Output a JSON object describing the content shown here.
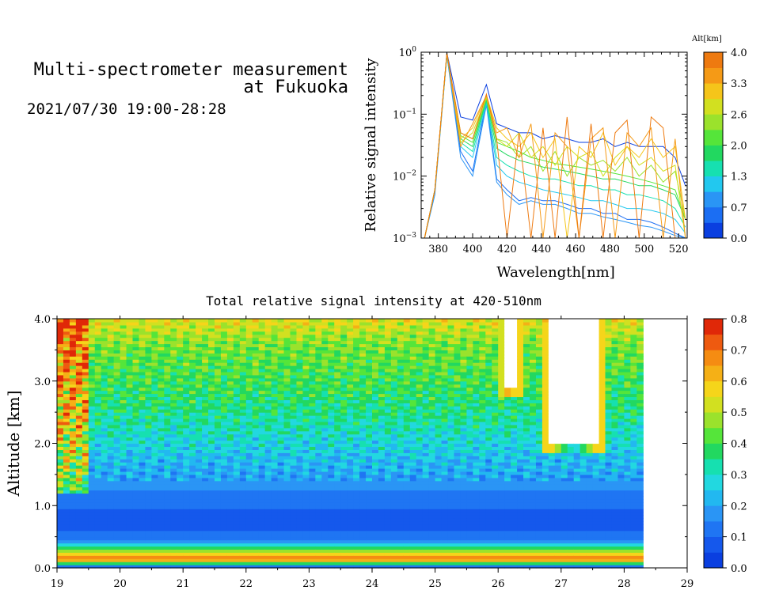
{
  "header": {
    "title_line1": "Multi-spectrometer measurement",
    "title_line2": "at Fukuoka",
    "datetime": "2021/07/30 19:00-28:28"
  },
  "chart_data": [
    {
      "type": "line",
      "xlabel": "Wavelength[nm]",
      "ylabel": "Relative signal intensity",
      "xlim": [
        370,
        525
      ],
      "ylim": [
        0.001,
        1
      ],
      "yscale": "log",
      "x_ticks": [
        "380",
        "400",
        "420",
        "440",
        "460",
        "480",
        "500",
        "520"
      ],
      "y_ticks": [
        {
          "base": "10",
          "exp": "0"
        },
        {
          "base": "10",
          "exp": "−1"
        },
        {
          "base": "10",
          "exp": "−2"
        },
        {
          "base": "10",
          "exp": "−3"
        }
      ],
      "x": [
        372,
        378,
        385,
        393,
        400,
        408,
        414,
        420,
        427,
        434,
        441,
        448,
        455,
        462,
        469,
        476,
        483,
        490,
        497,
        504,
        511,
        518,
        524
      ],
      "series": [
        {
          "altitude_km": 0.0,
          "color": "#0a3fe0",
          "values": [
            0.001,
            0.006,
            0.98,
            0.09,
            0.08,
            0.3,
            0.07,
            0.06,
            0.05,
            0.05,
            0.04,
            0.045,
            0.04,
            0.035,
            0.035,
            0.04,
            0.03,
            0.035,
            0.03,
            0.03,
            0.03,
            0.02,
            0.007
          ]
        },
        {
          "altitude_km": 0.3,
          "color": "#1b6ef3",
          "values": [
            0.001,
            0.006,
            0.9,
            0.025,
            0.012,
            0.16,
            0.009,
            0.006,
            0.004,
            0.0045,
            0.004,
            0.004,
            0.0035,
            0.003,
            0.003,
            0.0025,
            0.0025,
            0.002,
            0.002,
            0.0018,
            0.0015,
            0.0012,
            0.001
          ]
        },
        {
          "altitude_km": 0.7,
          "color": "#2a95f5",
          "values": [
            0.001,
            0.005,
            0.88,
            0.02,
            0.01,
            0.14,
            0.008,
            0.005,
            0.0035,
            0.004,
            0.0035,
            0.0035,
            0.003,
            0.0025,
            0.0025,
            0.0022,
            0.002,
            0.0018,
            0.0016,
            0.0015,
            0.0013,
            0.0011,
            0.001
          ]
        },
        {
          "altitude_km": 1.0,
          "color": "#22c8ef",
          "values": [
            0.001,
            0.006,
            0.9,
            0.03,
            0.02,
            0.15,
            0.015,
            0.01,
            0.008,
            0.007,
            0.006,
            0.0055,
            0.005,
            0.0045,
            0.004,
            0.004,
            0.0035,
            0.003,
            0.003,
            0.0028,
            0.0025,
            0.002,
            0.0012
          ]
        },
        {
          "altitude_km": 1.3,
          "color": "#16e0b0",
          "values": [
            0.001,
            0.006,
            0.92,
            0.035,
            0.025,
            0.16,
            0.02,
            0.015,
            0.012,
            0.01,
            0.009,
            0.009,
            0.008,
            0.007,
            0.007,
            0.006,
            0.006,
            0.005,
            0.005,
            0.0045,
            0.004,
            0.003,
            0.0015
          ]
        },
        {
          "altitude_km": 1.7,
          "color": "#22d860",
          "values": [
            0.001,
            0.006,
            0.93,
            0.04,
            0.03,
            0.17,
            0.028,
            0.022,
            0.018,
            0.016,
            0.014,
            0.013,
            0.012,
            0.011,
            0.01,
            0.009,
            0.009,
            0.008,
            0.007,
            0.007,
            0.006,
            0.005,
            0.002
          ]
        },
        {
          "altitude_km": 2.0,
          "color": "#55e53a",
          "values": [
            0.001,
            0.006,
            0.94,
            0.045,
            0.035,
            0.18,
            0.035,
            0.03,
            0.025,
            0.02,
            0.018,
            0.016,
            0.015,
            0.014,
            0.013,
            0.012,
            0.011,
            0.01,
            0.009,
            0.008,
            0.007,
            0.006,
            0.002
          ]
        },
        {
          "altitude_km": 2.4,
          "color": "#9be22c",
          "values": [
            0.001,
            0.006,
            0.95,
            0.05,
            0.04,
            0.18,
            0.04,
            0.035,
            0.02,
            0.03,
            0.012,
            0.025,
            0.01,
            0.02,
            0.015,
            0.018,
            0.012,
            0.02,
            0.01,
            0.015,
            0.008,
            0.012,
            0.002
          ]
        },
        {
          "altitude_km": 2.8,
          "color": "#d2e020",
          "values": [
            0.001,
            0.006,
            0.96,
            0.035,
            0.05,
            0.19,
            0.04,
            0.03,
            0.05,
            0.02,
            0.03,
            0.015,
            0.03,
            0.02,
            0.025,
            0.01,
            0.02,
            0.03,
            0.015,
            0.02,
            0.012,
            0.015,
            0.001
          ]
        },
        {
          "altitude_km": 3.1,
          "color": "#f5c51a",
          "values": [
            0.001,
            0.006,
            0.96,
            0.04,
            0.06,
            0.2,
            0.06,
            0.04,
            0.03,
            0.05,
            0.02,
            0.04,
            0.001,
            0.03,
            0.02,
            0.05,
            0.015,
            0.03,
            0.02,
            0.04,
            0.02,
            0.03,
            0.002
          ]
        },
        {
          "altitude_km": 3.4,
          "color": "#f59a16",
          "values": [
            0.001,
            0.006,
            0.97,
            0.03,
            0.07,
            0.2,
            0.05,
            0.06,
            0.02,
            0.07,
            0.001,
            0.05,
            0.03,
            0.001,
            0.04,
            0.06,
            0.001,
            0.05,
            0.03,
            0.06,
            0.001,
            0.04,
            0.001
          ]
        },
        {
          "altitude_km": 3.8,
          "color": "#ee7a10",
          "values": [
            0.001,
            0.006,
            0.97,
            0.05,
            0.04,
            0.21,
            0.04,
            0.001,
            0.05,
            0.001,
            0.06,
            0.001,
            0.09,
            0.001,
            0.07,
            0.001,
            0.05,
            0.08,
            0.001,
            0.09,
            0.06,
            0.001,
            0.001
          ]
        }
      ]
    },
    {
      "type": "heatmap",
      "title": "Total relative signal intensity at 420-510nm",
      "ylabel": "Altitude [km]",
      "xlim": [
        19,
        29
      ],
      "ylim": [
        0.0,
        4.0
      ],
      "x_ticks": [
        "19",
        "20",
        "21",
        "22",
        "23",
        "24",
        "25",
        "26",
        "27",
        "28",
        "29"
      ],
      "y_ticks": [
        "0.0",
        "1.0",
        "2.0",
        "3.0",
        "4.0"
      ],
      "data_x_range": [
        19.0,
        28.3
      ],
      "value_range": [
        0.0,
        0.8
      ],
      "saturated_regions": [
        {
          "x_from": 26.8,
          "x_to": 27.6,
          "alt_from": 2.0,
          "alt_to": 4.0
        },
        {
          "x_from": 26.15,
          "x_to": 26.3,
          "alt_from": 2.9,
          "alt_to": 4.0
        }
      ],
      "profile": [
        {
          "alt": 0.0,
          "value": 0.0
        },
        {
          "alt": 0.15,
          "value": 0.75
        },
        {
          "alt": 0.3,
          "value": 0.4
        },
        {
          "alt": 0.45,
          "value": 0.12
        },
        {
          "alt": 0.8,
          "value": 0.07
        },
        {
          "alt": 1.5,
          "value": 0.2
        },
        {
          "alt": 2.5,
          "value": 0.35
        },
        {
          "alt": 3.6,
          "value": 0.45
        },
        {
          "alt": 4.0,
          "value": 0.55
        }
      ]
    }
  ],
  "colorbars": {
    "altitude": {
      "title": "Alt[km]",
      "colors": [
        "#0a3fe0",
        "#1b6ef3",
        "#2a95f5",
        "#22c8ef",
        "#16e0b0",
        "#22d860",
        "#55e53a",
        "#9be22c",
        "#d2e020",
        "#f5c51a",
        "#f59a16",
        "#ee7a10"
      ],
      "labels": [
        "0.0",
        "0.7",
        "1.3",
        "2.0",
        "2.6",
        "3.3",
        "4.0"
      ]
    },
    "intensity": {
      "colors": [
        "#0a3fe0",
        "#1558ec",
        "#1f75f3",
        "#2a95f5",
        "#22b8f0",
        "#22d8e0",
        "#16e0b0",
        "#22d860",
        "#55e53a",
        "#9be22c",
        "#d2e020",
        "#f5d51a",
        "#f5b016",
        "#f58c12",
        "#ee5a10",
        "#e02808"
      ],
      "labels": [
        "0.0",
        "0.1",
        "0.2",
        "0.3",
        "0.4",
        "0.5",
        "0.6",
        "0.7",
        "0.8"
      ]
    }
  }
}
